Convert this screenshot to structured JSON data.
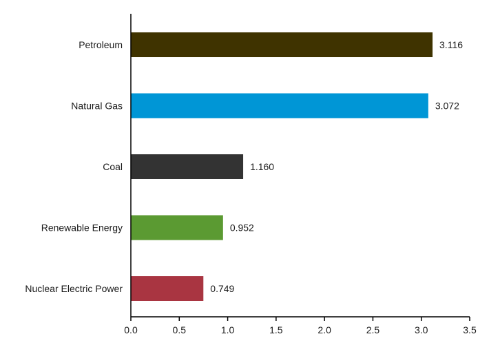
{
  "chart_data": {
    "type": "bar",
    "orientation": "horizontal",
    "categories": [
      "Petroleum",
      "Natural Gas",
      "Coal",
      "Renewable Energy",
      "Nuclear Electric Power"
    ],
    "values": [
      3.116,
      3.072,
      1.16,
      0.952,
      0.749
    ],
    "value_labels": [
      "3.116",
      "3.072",
      "1.160",
      "0.952",
      "0.749"
    ],
    "colors": [
      "#3f3300",
      "#0096d6",
      "#333333",
      "#5b9a32",
      "#a93541"
    ],
    "xlim": [
      0,
      3.5
    ],
    "xticks": [
      0,
      0.5,
      1,
      1.5,
      2,
      2.5,
      3,
      3.5
    ],
    "xtick_labels": [
      "0.0",
      "0.5",
      "1.0",
      "1.5",
      "2.0",
      "2.5",
      "3.0",
      "3.5"
    ],
    "title": "",
    "xlabel": "",
    "ylabel": "",
    "grid": false,
    "legend": "none"
  }
}
